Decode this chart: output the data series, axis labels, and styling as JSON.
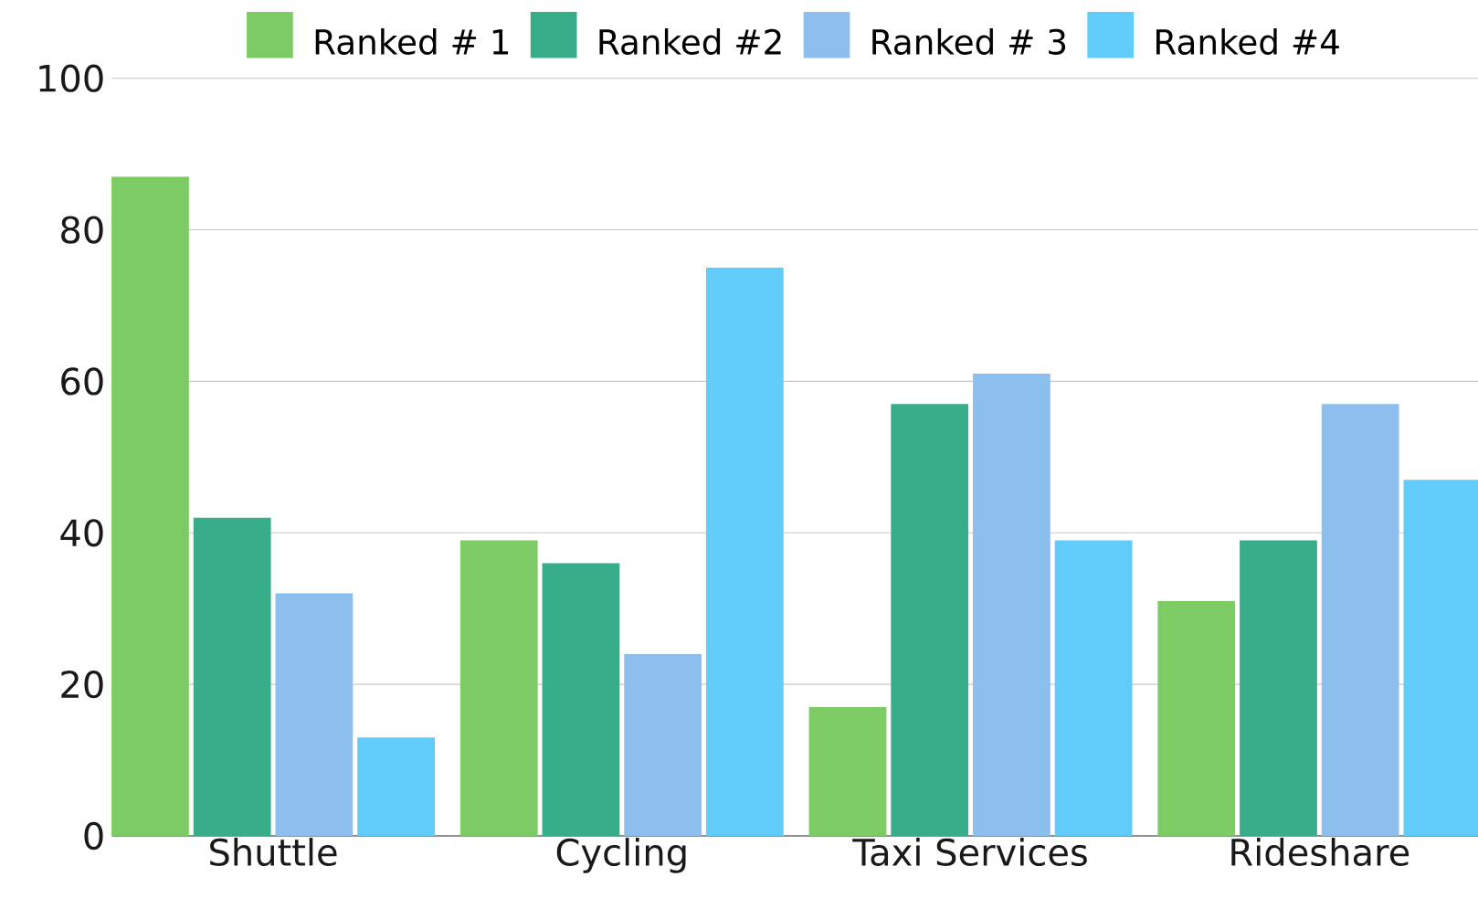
{
  "chart_data": {
    "type": "bar",
    "categories": [
      "Shuttle",
      "Cycling",
      "Taxi Services",
      "Rideshare"
    ],
    "series": [
      {
        "name": "Ranked # 1",
        "color": "#7dcb64",
        "values": [
          87,
          39,
          17,
          31
        ]
      },
      {
        "name": "Ranked #2",
        "color": "#38ad89",
        "values": [
          42,
          36,
          57,
          39
        ]
      },
      {
        "name": "Ranked # 3",
        "color": "#8cbfee",
        "values": [
          32,
          24,
          61,
          57
        ]
      },
      {
        "name": "Ranked #4",
        "color": "#61ccf9",
        "values": [
          13,
          75,
          39,
          47
        ]
      }
    ],
    "ylim": [
      0,
      100
    ],
    "yticks": [
      0,
      20,
      40,
      60,
      80,
      100
    ],
    "grid": "y",
    "legend": "top"
  }
}
